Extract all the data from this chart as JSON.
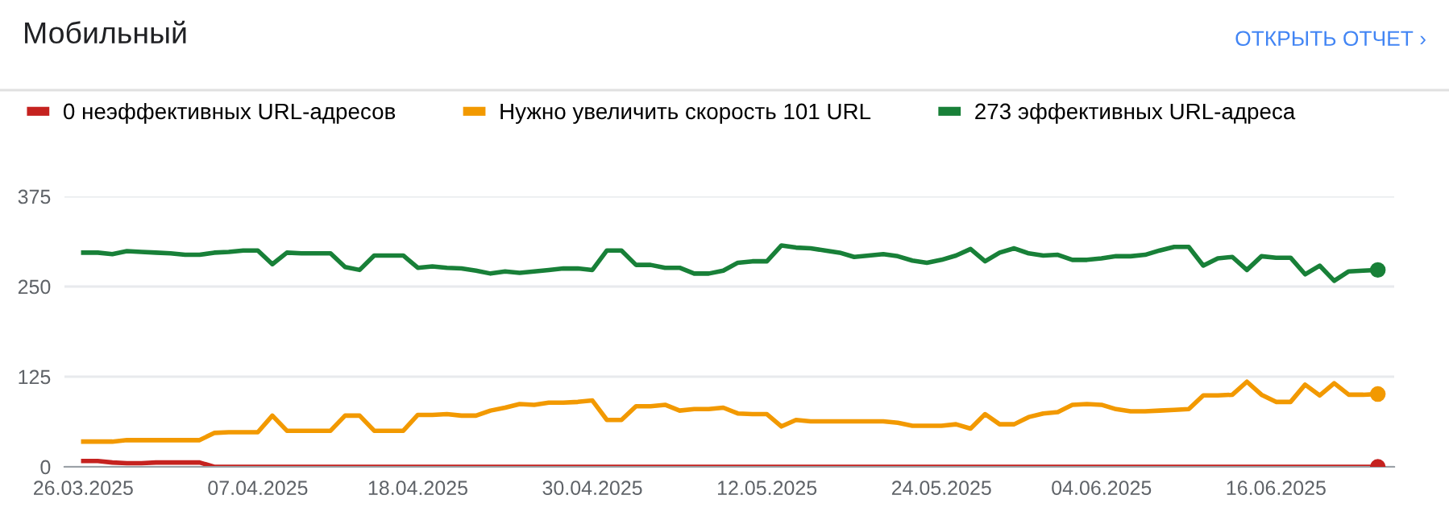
{
  "chart_data": {
    "type": "line",
    "title": "Мобильный",
    "annotations": [
      "ОТКРЫТЬ ОТЧЕТ ›"
    ],
    "x": [
      "2025-03-26",
      "2025-03-27",
      "2025-03-28",
      "2025-03-29",
      "2025-03-30",
      "2025-03-31",
      "2025-04-01",
      "2025-04-02",
      "2025-04-03",
      "2025-04-04",
      "2025-04-05",
      "2025-04-06",
      "2025-04-07",
      "2025-04-08",
      "2025-04-09",
      "2025-04-10",
      "2025-04-11",
      "2025-04-12",
      "2025-04-13",
      "2025-04-14",
      "2025-04-15",
      "2025-04-16",
      "2025-04-17",
      "2025-04-18",
      "2025-04-19",
      "2025-04-20",
      "2025-04-21",
      "2025-04-22",
      "2025-04-23",
      "2025-04-24",
      "2025-04-25",
      "2025-04-26",
      "2025-04-27",
      "2025-04-28",
      "2025-04-29",
      "2025-04-30",
      "2025-05-01",
      "2025-05-02",
      "2025-05-03",
      "2025-05-04",
      "2025-05-05",
      "2025-05-06",
      "2025-05-07",
      "2025-05-08",
      "2025-05-09",
      "2025-05-10",
      "2025-05-11",
      "2025-05-12",
      "2025-05-13",
      "2025-05-14",
      "2025-05-15",
      "2025-05-16",
      "2025-05-17",
      "2025-05-18",
      "2025-05-19",
      "2025-05-20",
      "2025-05-21",
      "2025-05-22",
      "2025-05-23",
      "2025-05-24",
      "2025-05-25",
      "2025-05-26",
      "2025-05-27",
      "2025-05-28",
      "2025-05-29",
      "2025-05-30",
      "2025-05-31",
      "2025-06-01",
      "2025-06-02",
      "2025-06-03",
      "2025-06-04",
      "2025-06-05",
      "2025-06-06",
      "2025-06-07",
      "2025-06-08",
      "2025-06-09",
      "2025-06-10",
      "2025-06-11",
      "2025-06-12",
      "2025-06-13",
      "2025-06-14",
      "2025-06-15",
      "2025-06-16",
      "2025-06-17",
      "2025-06-18",
      "2025-06-19",
      "2025-06-20",
      "2025-06-21",
      "2025-06-22",
      "2025-06-23"
    ],
    "series": [
      {
        "name": "0 неэффективных URL-адресов",
        "color": "#c5221f",
        "values": [
          8,
          8,
          6,
          5,
          5,
          6,
          6,
          6,
          6,
          0,
          0,
          0,
          0,
          0,
          0,
          0,
          0,
          0,
          0,
          0,
          0,
          0,
          0,
          0,
          0,
          0,
          0,
          0,
          0,
          0,
          0,
          0,
          0,
          0,
          0,
          0,
          0,
          0,
          0,
          0,
          0,
          0,
          0,
          0,
          0,
          0,
          0,
          0,
          0,
          0,
          0,
          0,
          0,
          0,
          0,
          0,
          0,
          0,
          0,
          0,
          0,
          0,
          0,
          0,
          0,
          0,
          0,
          0,
          0,
          0,
          0,
          0,
          0,
          0,
          0,
          0,
          0,
          0,
          0,
          0,
          0,
          0,
          0,
          0,
          0,
          0,
          0,
          0,
          0,
          0
        ]
      },
      {
        "name": "Нужно увеличить скорость 101 URL",
        "color": "#f29900",
        "values": [
          35,
          35,
          35,
          37,
          37,
          37,
          37,
          37,
          37,
          47,
          48,
          48,
          48,
          71,
          50,
          50,
          50,
          50,
          71,
          71,
          50,
          50,
          50,
          72,
          72,
          73,
          71,
          71,
          78,
          82,
          87,
          86,
          89,
          89,
          90,
          92,
          65,
          65,
          84,
          84,
          86,
          78,
          80,
          80,
          82,
          74,
          73,
          73,
          56,
          65,
          63,
          63,
          63,
          63,
          63,
          63,
          61,
          57,
          57,
          57,
          59,
          53,
          73,
          59,
          59,
          69,
          74,
          76,
          86,
          87,
          86,
          80,
          77,
          77,
          78,
          79,
          80,
          99,
          99,
          100,
          118,
          100,
          90,
          90,
          114,
          99,
          116,
          100,
          100,
          101
        ]
      },
      {
        "name": "273 эффективных URL-адреса",
        "color": "#188038",
        "values": [
          297,
          297,
          295,
          299,
          298,
          297,
          296,
          294,
          294,
          297,
          298,
          300,
          300,
          281,
          297,
          296,
          296,
          296,
          277,
          273,
          293,
          293,
          293,
          276,
          278,
          276,
          275,
          272,
          268,
          271,
          269,
          271,
          273,
          275,
          275,
          273,
          300,
          300,
          280,
          280,
          276,
          276,
          268,
          268,
          272,
          283,
          285,
          285,
          307,
          304,
          303,
          300,
          297,
          291,
          293,
          295,
          292,
          286,
          283,
          287,
          293,
          302,
          285,
          297,
          303,
          296,
          293,
          294,
          287,
          287,
          289,
          292,
          292,
          294,
          300,
          305,
          305,
          279,
          289,
          291,
          273,
          292,
          290,
          290,
          267,
          279,
          258,
          271,
          272,
          273
        ]
      }
    ],
    "xlim": [
      "2025-03-24T17:00",
      "2025-06-24T03:00"
    ],
    "xticks": [
      {
        "value": "2025-03-26",
        "label": "26.03.2025"
      },
      {
        "value": "2025-04-07",
        "label": "07.04.2025"
      },
      {
        "value": "2025-04-18",
        "label": "18.04.2025"
      },
      {
        "value": "2025-04-30",
        "label": "30.04.2025"
      },
      {
        "value": "2025-05-12",
        "label": "12.05.2025"
      },
      {
        "value": "2025-05-24",
        "label": "24.05.2025"
      },
      {
        "value": "2025-06-04",
        "label": "04.06.2025"
      },
      {
        "value": "2025-06-16",
        "label": "16.06.2025"
      }
    ],
    "ylim": [
      0,
      375
    ],
    "yticks": [
      0,
      125,
      250,
      375
    ],
    "grid": "y",
    "legend": "top left",
    "marker": "none",
    "line_style": "solid"
  }
}
